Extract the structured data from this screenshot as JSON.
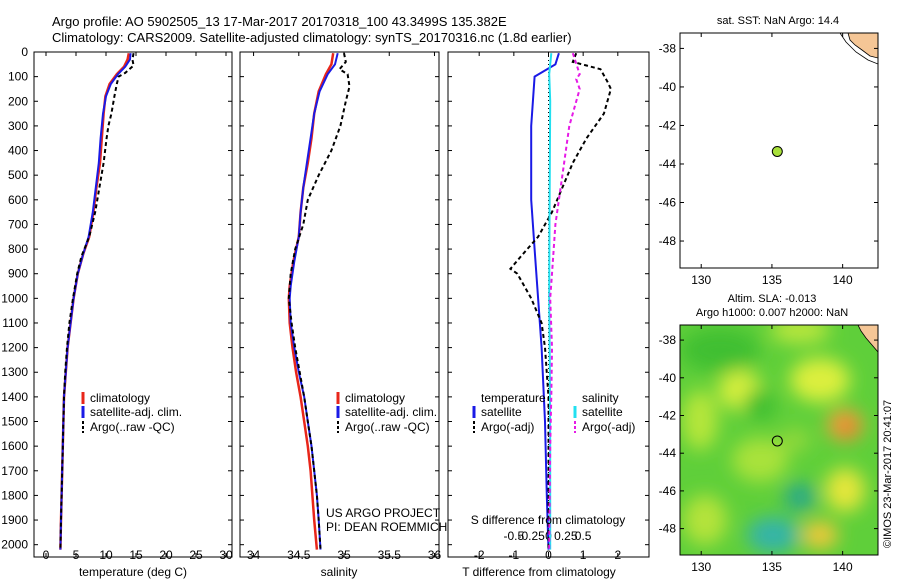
{
  "header": {
    "line1": "Argo profile: AO 5902505_13 17-Mar-2017 20170318_100 43.3499S 135.382E",
    "line2": "Climatology: CARS2009. Satellite-adjusted climatology: synTS_20170316.nc (1.8d earlier)"
  },
  "colors": {
    "climatology": "#e8261a",
    "satellite": "#1a1ae6",
    "argo": "#000000",
    "sal_satellite": "#22e0f0",
    "sal_argo": "#e61ae6",
    "land": "#f5c696"
  },
  "depth_axis": {
    "ticks": [
      "0",
      "100",
      "200",
      "300",
      "400",
      "500",
      "600",
      "700",
      "800",
      "900",
      "1000",
      "1100",
      "1200",
      "1300",
      "1400",
      "1500",
      "1600",
      "1700",
      "1800",
      "1900",
      "2000"
    ],
    "ylim": [
      0,
      2050
    ]
  },
  "legend_profile": {
    "clim": "climatology",
    "sat": "satellite-adj. clim.",
    "argo": "Argo(..raw -QC)"
  },
  "temperature_panel": {
    "xlabel": "temperature (deg C)",
    "xticks": [
      "0",
      "5",
      "10",
      "15",
      "20",
      "25",
      "30"
    ],
    "xlim": [
      -2,
      31
    ]
  },
  "salinity_panel": {
    "xlabel": "salinity",
    "xticks": [
      "34",
      "34.5",
      "35",
      "35.5",
      "36"
    ],
    "xlim": [
      33.85,
      36.05
    ],
    "credit1": "US ARGO PROJECT",
    "credit2": "PI: DEAN ROEMMICH"
  },
  "difference_panel": {
    "xlabel": "T difference from climatology",
    "top_label": "S difference from climatology",
    "t_ticks": [
      "-2",
      "-1",
      "0",
      "1",
      "2"
    ],
    "s_ticks": [
      "-0.5",
      "-0.25",
      "0",
      "0.25",
      "0.5"
    ],
    "xlim": [
      -2.9,
      2.9
    ],
    "legend": {
      "temp_head": "temperature",
      "sal_head": "salinity",
      "sat": "satellite",
      "argo": "Argo(-adj)"
    }
  },
  "sst_map": {
    "title": "sat. SST: NaN Argo: 14.4",
    "yticks": [
      "-38",
      "-40",
      "-42",
      "-44",
      "-46",
      "-48"
    ],
    "xticks": [
      "130",
      "135",
      "140"
    ],
    "lon_range": [
      128.5,
      142.5
    ],
    "lat_range": [
      -37.2,
      -49.4
    ],
    "float_lon": 135.38,
    "float_lat": -43.35
  },
  "sla_map": {
    "title1": "Altim. SLA: -0.013",
    "title2": "Argo h1000: 0.007 h2000: NaN",
    "yticks": [
      "-38",
      "-40",
      "-42",
      "-44",
      "-46",
      "-48"
    ],
    "xticks": [
      "130",
      "135",
      "140"
    ],
    "lon_range": [
      128.5,
      142.5
    ],
    "lat_range": [
      -37.2,
      -49.4
    ],
    "float_lon": 135.38,
    "float_lat": -43.35,
    "stamp": "©IMOS 23-Mar-2017 20:41:07"
  },
  "chart_data": [
    {
      "type": "line",
      "title": "",
      "xlabel": "temperature (deg C)",
      "ylabel": "",
      "xlim": [
        -2,
        31
      ],
      "ylim": [
        0,
        2050
      ],
      "y_inverted": true,
      "series": [
        {
          "name": "climatology",
          "points": [
            [
              13.8,
              5
            ],
            [
              13.6,
              30
            ],
            [
              13.0,
              60
            ],
            [
              11.8,
              90
            ],
            [
              10.6,
              130
            ],
            [
              9.9,
              180
            ],
            [
              9.6,
              250
            ],
            [
              9.3,
              350
            ],
            [
              9.0,
              450
            ],
            [
              8.4,
              550
            ],
            [
              7.9,
              650
            ],
            [
              7.2,
              750
            ],
            [
              6.2,
              820
            ],
            [
              5.3,
              900
            ],
            [
              4.6,
              1000
            ],
            [
              4.1,
              1100
            ],
            [
              3.6,
              1200
            ],
            [
              3.3,
              1300
            ],
            [
              3.0,
              1400
            ],
            [
              2.9,
              1500
            ],
            [
              2.8,
              1600
            ],
            [
              2.7,
              1700
            ],
            [
              2.6,
              1800
            ],
            [
              2.5,
              1900
            ],
            [
              2.4,
              2020
            ]
          ]
        },
        {
          "name": "satellite-adj. clim.",
          "points": [
            [
              14.1,
              5
            ],
            [
              14.0,
              30
            ],
            [
              13.2,
              60
            ],
            [
              12.0,
              90
            ],
            [
              10.8,
              130
            ],
            [
              10.0,
              180
            ],
            [
              9.5,
              250
            ],
            [
              9.1,
              350
            ],
            [
              8.8,
              450
            ],
            [
              8.3,
              550
            ],
            [
              7.8,
              650
            ],
            [
              7.1,
              750
            ],
            [
              6.2,
              820
            ],
            [
              5.3,
              900
            ],
            [
              4.6,
              1000
            ],
            [
              4.1,
              1100
            ],
            [
              3.6,
              1200
            ],
            [
              3.3,
              1300
            ],
            [
              3.0,
              1400
            ],
            [
              2.9,
              1500
            ],
            [
              2.8,
              1600
            ],
            [
              2.7,
              1700
            ],
            [
              2.6,
              1800
            ],
            [
              2.5,
              1900
            ],
            [
              2.4,
              2020
            ]
          ]
        },
        {
          "name": "Argo(..raw -QC)",
          "points": [
            [
              14.6,
              5
            ],
            [
              14.4,
              30
            ],
            [
              14.6,
              55
            ],
            [
              13.2,
              85
            ],
            [
              12.1,
              100
            ],
            [
              11.8,
              130
            ],
            [
              11.4,
              180
            ],
            [
              10.9,
              250
            ],
            [
              10.4,
              300
            ],
            [
              10.1,
              350
            ],
            [
              9.6,
              450
            ],
            [
              8.9,
              550
            ],
            [
              8.2,
              650
            ],
            [
              7.2,
              750
            ],
            [
              5.9,
              830
            ],
            [
              5.2,
              900
            ],
            [
              4.5,
              1000
            ],
            [
              3.9,
              1100
            ],
            [
              3.5,
              1200
            ],
            [
              3.2,
              1300
            ],
            [
              3.0,
              1400
            ],
            [
              2.9,
              1500
            ],
            [
              2.8,
              1600
            ],
            [
              2.7,
              1700
            ],
            [
              2.6,
              1800
            ],
            [
              2.5,
              1900
            ],
            [
              2.4,
              2020
            ]
          ]
        }
      ]
    },
    {
      "type": "line",
      "title": "",
      "xlabel": "salinity",
      "ylabel": "",
      "xlim": [
        33.85,
        36.05
      ],
      "ylim": [
        0,
        2050
      ],
      "y_inverted": true,
      "series": [
        {
          "name": "climatology",
          "points": [
            [
              34.88,
              5
            ],
            [
              34.86,
              50
            ],
            [
              34.8,
              90
            ],
            [
              34.72,
              160
            ],
            [
              34.67,
              250
            ],
            [
              34.64,
              350
            ],
            [
              34.6,
              450
            ],
            [
              34.55,
              550
            ],
            [
              34.52,
              650
            ],
            [
              34.5,
              750
            ],
            [
              34.44,
              850
            ],
            [
              34.4,
              950
            ],
            [
              34.39,
              1000
            ],
            [
              34.4,
              1100
            ],
            [
              34.43,
              1200
            ],
            [
              34.47,
              1300
            ],
            [
              34.52,
              1400
            ],
            [
              34.56,
              1500
            ],
            [
              34.6,
              1600
            ],
            [
              34.63,
              1700
            ],
            [
              34.65,
              1800
            ],
            [
              34.67,
              1900
            ],
            [
              34.7,
              2020
            ]
          ]
        },
        {
          "name": "satellite-adj. clim.",
          "points": [
            [
              34.93,
              5
            ],
            [
              34.9,
              50
            ],
            [
              34.82,
              90
            ],
            [
              34.73,
              160
            ],
            [
              34.67,
              250
            ],
            [
              34.63,
              350
            ],
            [
              34.59,
              450
            ],
            [
              34.55,
              550
            ],
            [
              34.52,
              650
            ],
            [
              34.5,
              750
            ],
            [
              34.45,
              850
            ],
            [
              34.41,
              950
            ],
            [
              34.4,
              1000
            ],
            [
              34.41,
              1100
            ],
            [
              34.45,
              1200
            ],
            [
              34.5,
              1300
            ],
            [
              34.56,
              1400
            ],
            [
              34.6,
              1500
            ],
            [
              34.64,
              1600
            ],
            [
              34.67,
              1700
            ],
            [
              34.7,
              1800
            ],
            [
              34.72,
              1900
            ],
            [
              34.74,
              2020
            ]
          ]
        },
        {
          "name": "Argo(..raw -QC)",
          "points": [
            [
              35.0,
              5
            ],
            [
              35.02,
              40
            ],
            [
              34.95,
              70
            ],
            [
              35.04,
              90
            ],
            [
              35.06,
              140
            ],
            [
              35.02,
              200
            ],
            [
              34.96,
              300
            ],
            [
              34.86,
              400
            ],
            [
              34.72,
              500
            ],
            [
              34.6,
              600
            ],
            [
              34.55,
              700
            ],
            [
              34.46,
              800
            ],
            [
              34.41,
              900
            ],
            [
              34.39,
              1000
            ],
            [
              34.42,
              1100
            ],
            [
              34.46,
              1200
            ],
            [
              34.51,
              1300
            ],
            [
              34.56,
              1400
            ],
            [
              34.6,
              1500
            ],
            [
              34.64,
              1600
            ],
            [
              34.67,
              1700
            ],
            [
              34.7,
              1800
            ],
            [
              34.72,
              1900
            ],
            [
              34.74,
              2020
            ]
          ]
        }
      ]
    },
    {
      "type": "line",
      "title": "",
      "xlabel": "T difference from climatology",
      "ylabel": "",
      "xlim": [
        -2.9,
        2.9
      ],
      "ylim": [
        0,
        2050
      ],
      "y_inverted": true,
      "series": [
        {
          "name": "temperature satellite",
          "points": [
            [
              0.3,
              5
            ],
            [
              0.2,
              50
            ],
            [
              -0.4,
              100
            ],
            [
              -0.5,
              300
            ],
            [
              -0.5,
              600
            ],
            [
              -0.4,
              800
            ],
            [
              -0.3,
              1000
            ],
            [
              -0.2,
              1200
            ],
            [
              -0.1,
              1500
            ],
            [
              -0.05,
              1800
            ],
            [
              0,
              2020
            ]
          ]
        },
        {
          "name": "temperature Argo(-adj)",
          "points": [
            [
              0.8,
              5
            ],
            [
              0.7,
              40
            ],
            [
              1.5,
              70
            ],
            [
              1.7,
              120
            ],
            [
              1.8,
              150
            ],
            [
              1.6,
              250
            ],
            [
              1.1,
              350
            ],
            [
              0.7,
              450
            ],
            [
              0.4,
              550
            ],
            [
              0.1,
              650
            ],
            [
              -0.3,
              750
            ],
            [
              -0.8,
              830
            ],
            [
              -1.1,
              880
            ],
            [
              -0.9,
              900
            ],
            [
              -0.5,
              1000
            ],
            [
              -0.2,
              1100
            ],
            [
              -0.1,
              1200
            ],
            [
              0,
              1400
            ],
            [
              0,
              1700
            ],
            [
              0,
              2020
            ]
          ]
        },
        {
          "name": "salinity satellite",
          "points": [
            [
              0.08,
              5
            ],
            [
              0.02,
              90
            ],
            [
              0.05,
              200
            ],
            [
              0.04,
              400
            ],
            [
              0.03,
              700
            ],
            [
              0.02,
              1000
            ],
            [
              0.04,
              1300
            ],
            [
              0.05,
              1600
            ],
            [
              0.05,
              2020
            ]
          ]
        },
        {
          "name": "salinity Argo(-adj)",
          "points": [
            [
              0.7,
              5
            ],
            [
              0.9,
              90
            ],
            [
              0.8,
              110
            ],
            [
              0.9,
              150
            ],
            [
              0.6,
              300
            ],
            [
              0.4,
              500
            ],
            [
              0.2,
              700
            ],
            [
              0.1,
              900
            ],
            [
              0.05,
              1000
            ],
            [
              0.1,
              1200
            ],
            [
              0.08,
              1400
            ],
            [
              0.05,
              1600
            ],
            [
              0.02,
              2020
            ]
          ]
        }
      ]
    }
  ]
}
